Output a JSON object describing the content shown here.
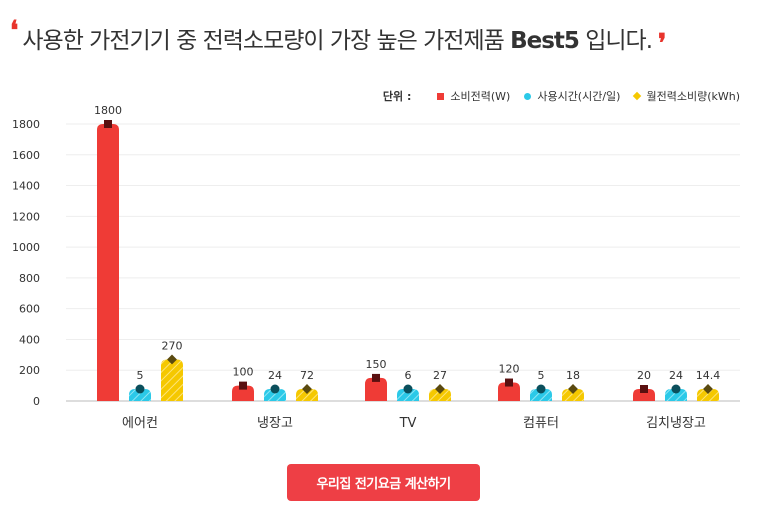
{
  "headline": {
    "text": "사용한 가전기기 중 전력소모량이 가장 높은 가전제품 ",
    "bold": "Best5",
    "tail": " 입니다."
  },
  "legend": {
    "unit_label": "단위 :",
    "items": [
      "소비전력(W)",
      "사용시간(시간/일)",
      "월전력소비량(kWh)"
    ]
  },
  "colors": {
    "power": "#ef3b36",
    "hours": "#2bc9e8",
    "monthly": "#f5c800",
    "marker_dark": "#5a1010",
    "marker_teal": "#0b4f5c",
    "marker_olive": "#5a4a10"
  },
  "chart_data": {
    "type": "bar",
    "categories": [
      "에어컨",
      "냉장고",
      "TV",
      "컴퓨터",
      "김치냉장고"
    ],
    "series": [
      {
        "name": "소비전력(W)",
        "values": [
          1800,
          100,
          150,
          120,
          20
        ],
        "labels": [
          "1800",
          "100",
          "150",
          "120",
          "20"
        ]
      },
      {
        "name": "사용시간(시간/일)",
        "values": [
          5,
          24,
          6,
          5,
          24
        ],
        "labels": [
          "5",
          "24",
          "6",
          "5",
          "24"
        ]
      },
      {
        "name": "월전력소비량(kWh)",
        "values": [
          270,
          72,
          27,
          18,
          14.4
        ],
        "labels": [
          "270",
          "72",
          "27",
          "18",
          "14.4"
        ]
      }
    ],
    "yticks": [
      "0",
      "200",
      "400",
      "600",
      "800",
      "1000",
      "1200",
      "1400",
      "1600",
      "1800"
    ],
    "ylim": [
      0,
      1800
    ],
    "grid": true,
    "legend_position": "top-right"
  },
  "button": {
    "label": "우리집 전기요금 계산하기"
  }
}
